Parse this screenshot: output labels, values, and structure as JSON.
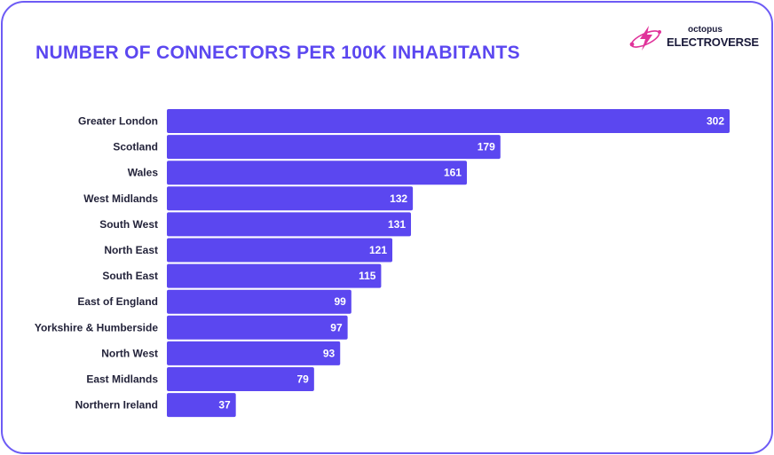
{
  "logo": {
    "text_small": "octopus",
    "text_big": "ELECTROVERSE",
    "icon": "lightning-bolt-icon",
    "color": "#e0339a"
  },
  "chart_data": {
    "type": "bar",
    "orientation": "horizontal",
    "title": "NUMBER OF CONNECTORS PER 100K INHABITANTS",
    "categories": [
      "Greater London",
      "Scotland",
      "Wales",
      "West Midlands",
      "South West",
      "North East",
      "South East",
      "East of England",
      "Yorkshire & Humberside",
      "North West",
      "East Midlands",
      "Northern Ireland"
    ],
    "values": [
      302,
      179,
      161,
      132,
      131,
      121,
      115,
      99,
      97,
      93,
      79,
      37
    ],
    "xlim": [
      0,
      302
    ],
    "grid": false,
    "data_labels": true,
    "bar_color": "#5b47f0",
    "title_color": "#5b47f0"
  }
}
